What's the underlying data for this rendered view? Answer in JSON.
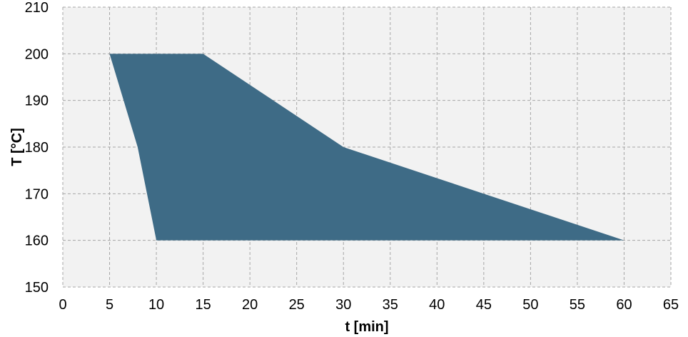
{
  "chart_data": {
    "type": "area",
    "title": "",
    "xlabel": "t [min]",
    "ylabel": "T [°C]",
    "xlim": [
      0,
      65
    ],
    "ylim": [
      150,
      210
    ],
    "x_ticks": [
      0,
      5,
      10,
      15,
      20,
      25,
      30,
      35,
      40,
      45,
      50,
      55,
      60,
      65
    ],
    "y_ticks": [
      150,
      160,
      170,
      180,
      190,
      200,
      210
    ],
    "grid": true,
    "legend": "none",
    "series": [
      {
        "color": "#3e6b86",
        "points": [
          {
            "x": 5,
            "y": 200
          },
          {
            "x": 15,
            "y": 200
          },
          {
            "x": 30,
            "y": 180
          },
          {
            "x": 60,
            "y": 160
          },
          {
            "x": 10,
            "y": 160
          },
          {
            "x": 8,
            "y": 180
          },
          {
            "x": 5,
            "y": 200
          }
        ]
      }
    ]
  }
}
